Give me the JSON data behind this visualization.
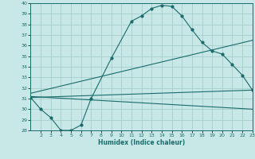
{
  "xlabel": "Humidex (Indice chaleur)",
  "bg_color": "#c8e8e8",
  "line_color": "#1a6b6b",
  "grid_color": "#a0c8c8",
  "xlim": [
    1,
    23
  ],
  "ylim": [
    28,
    40
  ],
  "yticks": [
    28,
    29,
    30,
    31,
    32,
    33,
    34,
    35,
    36,
    37,
    38,
    39,
    40
  ],
  "xtick_labels": [
    "2",
    "3",
    "4",
    "5",
    "6",
    "7",
    "8",
    "9",
    "10",
    "11",
    "12",
    "13",
    "14",
    "15",
    "16",
    "17",
    "18",
    "19",
    "20",
    "21",
    "22",
    "23"
  ],
  "xtick_pos": [
    2,
    3,
    4,
    5,
    6,
    7,
    8,
    9,
    10,
    11,
    12,
    13,
    14,
    15,
    16,
    17,
    18,
    19,
    20,
    21,
    22,
    23
  ],
  "line1_x": [
    1,
    2,
    3,
    4,
    5,
    6,
    7,
    9,
    11,
    12,
    13,
    14,
    15,
    16,
    17,
    18,
    19,
    20,
    21,
    22,
    23
  ],
  "line1_y": [
    31.1,
    30.0,
    29.2,
    28.0,
    28.0,
    28.5,
    31.0,
    34.8,
    38.3,
    38.8,
    39.5,
    39.8,
    39.7,
    38.8,
    37.5,
    36.3,
    35.5,
    35.2,
    34.2,
    33.2,
    31.8
  ],
  "line2_x": [
    1,
    23
  ],
  "line2_y": [
    31.1,
    31.8
  ],
  "line3_x": [
    1,
    23
  ],
  "line3_y": [
    31.5,
    36.5
  ],
  "line4_x": [
    1,
    23
  ],
  "line4_y": [
    31.2,
    30.0
  ]
}
